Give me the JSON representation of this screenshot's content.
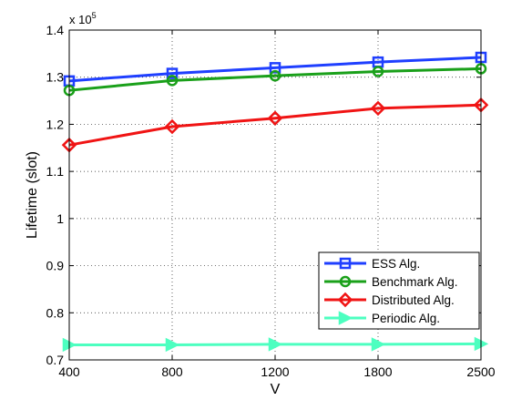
{
  "chart_data": {
    "type": "line",
    "categories": [
      "400",
      "800",
      "1200",
      "1800",
      "2500"
    ],
    "xlabel": "V",
    "ylabel": "Lifetime (slot)",
    "ylim": [
      0.7,
      1.4
    ],
    "yticks": [
      "0.7",
      "0.8",
      "0.9",
      "1",
      "1.1",
      "1.2",
      "1.3",
      "1.4"
    ],
    "y_multiplier_base": "x 10",
    "y_multiplier_exp": "5",
    "grid": true,
    "legend_position": "bottom-right",
    "series": [
      {
        "name": "ESS Alg.",
        "color": "#1f3fff",
        "marker": "square",
        "values": [
          1.292,
          1.308,
          1.32,
          1.332,
          1.342
        ]
      },
      {
        "name": "Benchmark Alg.",
        "color": "#1aa01a",
        "marker": "circle",
        "values": [
          1.272,
          1.293,
          1.303,
          1.312,
          1.318
        ]
      },
      {
        "name": "Distributed Alg.",
        "color": "#f01414",
        "marker": "diamond",
        "values": [
          1.156,
          1.195,
          1.213,
          1.234,
          1.241
        ]
      },
      {
        "name": "Periodic Alg.",
        "color": "#4dffc0",
        "marker": "triangle-right",
        "values": [
          0.732,
          0.732,
          0.733,
          0.733,
          0.734
        ]
      }
    ]
  }
}
